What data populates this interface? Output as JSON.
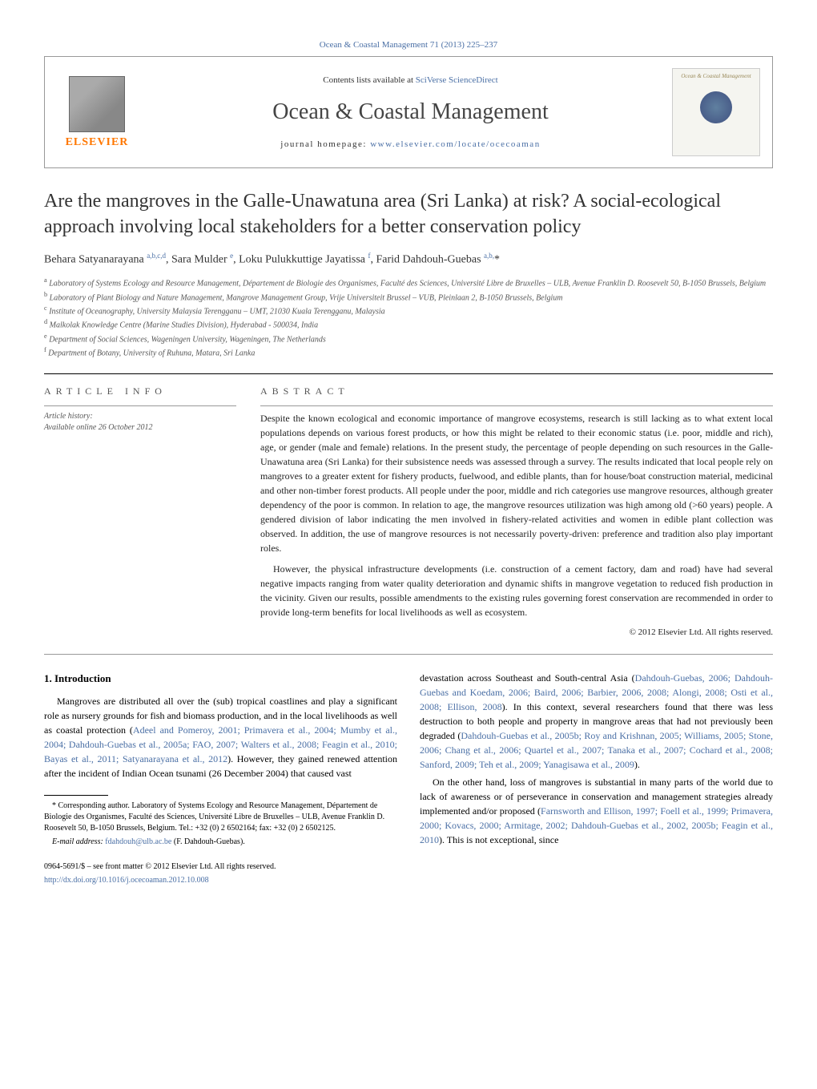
{
  "top_link": "Ocean & Coastal Management 71 (2013) 225–237",
  "header": {
    "contents_prefix": "Contents lists available at ",
    "contents_link": "SciVerse ScienceDirect",
    "journal": "Ocean & Coastal Management",
    "homepage_prefix": "journal homepage: ",
    "homepage_link": "www.elsevier.com/locate/ocecoaman",
    "publisher": "ELSEVIER",
    "cover_title": "Ocean & Coastal Management"
  },
  "title": "Are the mangroves in the Galle-Unawatuna area (Sri Lanka) at risk? A social-ecological approach involving local stakeholders for a better conservation policy",
  "authors_html": "Behara Satyanarayana <sup>a,b,c,d</sup>, Sara Mulder <sup>e</sup>, Loku Pulukkuttige Jayatissa <sup>f</sup>, Farid Dahdouh-Guebas <sup>a,b,</sup>*",
  "affiliations": [
    "a Laboratory of Systems Ecology and Resource Management, Département de Biologie des Organismes, Faculté des Sciences, Université Libre de Bruxelles – ULB, Avenue Franklin D. Roosevelt 50, B-1050 Brussels, Belgium",
    "b Laboratory of Plant Biology and Nature Management, Mangrove Management Group, Vrije Universiteit Brussel – VUB, Pleinlaan 2, B-1050 Brussels, Belgium",
    "c Institute of Oceanography, University Malaysia Terengganu – UMT, 21030 Kuala Terengganu, Malaysia",
    "d Malkolak Knowledge Centre (Marine Studies Division), Hyderabad - 500034, India",
    "e Department of Social Sciences, Wageningen University, Wageningen, The Netherlands",
    "f Department of Botany, University of Ruhuna, Matara, Sri Lanka"
  ],
  "article_info_label": "ARTICLE INFO",
  "abstract_label": "ABSTRACT",
  "history_label": "Article history:",
  "history_text": "Available online 26 October 2012",
  "abstract": {
    "p1": "Despite the known ecological and economic importance of mangrove ecosystems, research is still lacking as to what extent local populations depends on various forest products, or how this might be related to their economic status (i.e. poor, middle and rich), age, or gender (male and female) relations. In the present study, the percentage of people depending on such resources in the Galle-Unawatuna area (Sri Lanka) for their subsistence needs was assessed through a survey. The results indicated that local people rely on mangroves to a greater extent for fishery products, fuelwood, and edible plants, than for house/boat construction material, medicinal and other non-timber forest products. All people under the poor, middle and rich categories use mangrove resources, although greater dependency of the poor is common. In relation to age, the mangrove resources utilization was high among old (>60 years) people. A gendered division of labor indicating the men involved in fishery-related activities and women in edible plant collection was observed. In addition, the use of mangrove resources is not necessarily poverty-driven: preference and tradition also play important roles.",
    "p2": "However, the physical infrastructure developments (i.e. construction of a cement factory, dam and road) have had several negative impacts ranging from water quality deterioration and dynamic shifts in mangrove vegetation to reduced fish production in the vicinity. Given our results, possible amendments to the existing rules governing forest conservation are recommended in order to provide long-term benefits for local livelihoods as well as ecosystem."
  },
  "copyright": "© 2012 Elsevier Ltd. All rights reserved.",
  "intro_heading": "1. Introduction",
  "intro_col1_p1_pre": "Mangroves are distributed all over the (sub) tropical coastlines and play a significant role as nursery grounds for fish and biomass production, and in the local livelihoods as well as coastal protection (",
  "intro_col1_refs1": "Adeel and Pomeroy, 2001; Primavera et al., 2004; Mumby et al., 2004; Dahdouh-Guebas et al., 2005a; FAO, 2007; Walters et al., 2008; Feagin et al., 2010; Bayas et al., 2011; Satyanarayana et al., 2012",
  "intro_col1_p1_post": "). However, they gained renewed attention after the incident of Indian Ocean tsunami (26 December 2004) that caused vast",
  "intro_col2_p1_pre": "devastation across Southeast and South-central Asia (",
  "intro_col2_refs1": "Dahdouh-Guebas, 2006; Dahdouh-Guebas and Koedam, 2006; Baird, 2006; Barbier, 2006, 2008; Alongi, 2008; Osti et al., 2008; Ellison, 2008",
  "intro_col2_p1_mid": "). In this context, several researchers found that there was less destruction to both people and property in mangrove areas that had not previously been degraded (",
  "intro_col2_refs2": "Dahdouh-Guebas et al., 2005b; Roy and Krishnan, 2005; Williams, 2005; Stone, 2006; Chang et al., 2006; Quartel et al., 2007; Tanaka et al., 2007; Cochard et al., 2008; Sanford, 2009; Teh et al., 2009; Yanagisawa et al., 2009",
  "intro_col2_p1_post": ").",
  "intro_col2_p2_pre": "On the other hand, loss of mangroves is substantial in many parts of the world due to lack of awareness or of perseverance in conservation and management strategies already implemented and/or proposed (",
  "intro_col2_refs3": "Farnsworth and Ellison, 1997; Foell et al., 1999; Primavera, 2000; Kovacs, 2000; Armitage, 2002; Dahdouh-Guebas et al., 2002, 2005b; Feagin et al., 2010",
  "intro_col2_p2_post": "). This is not exceptional, since",
  "corresponding": "* Corresponding author. Laboratory of Systems Ecology and Resource Management, Département de Biologie des Organismes, Faculté des Sciences, Université Libre de Bruxelles – ULB, Avenue Franklin D. Roosevelt 50, B-1050 Brussels, Belgium. Tel.: +32 (0) 2 6502164; fax: +32 (0) 2 6502125.",
  "email_label": "E-mail address:",
  "email": "fdahdouh@ulb.ac.be",
  "email_suffix": "(F. Dahdouh-Guebas).",
  "front_matter": "0964-5691/$ – see front matter © 2012 Elsevier Ltd. All rights reserved.",
  "doi": "http://dx.doi.org/10.1016/j.ocecoaman.2012.10.008"
}
